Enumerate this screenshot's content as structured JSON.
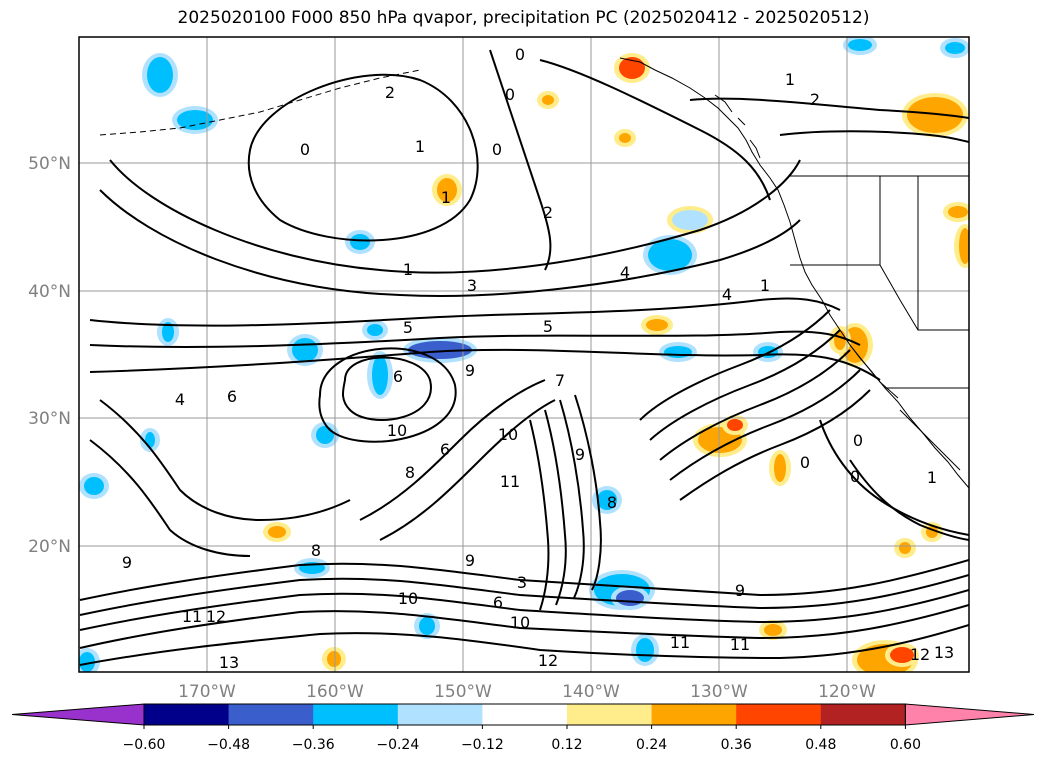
{
  "title": "2025020100 F000 850 hPa qvapor, precipitation PC (2025020412 - 2025020512)",
  "axes": {
    "longitude_labels": [
      "170°W",
      "160°W",
      "150°W",
      "140°W",
      "130°W",
      "120°W"
    ],
    "latitude_labels": [
      "50°N",
      "40°N",
      "30°N",
      "20°N"
    ],
    "grid": true
  },
  "colorbar": {
    "ticks": [
      "−0.60",
      "−0.48",
      "−0.36",
      "−0.24",
      "−0.12",
      "0.12",
      "0.24",
      "0.36",
      "0.48",
      "0.60"
    ],
    "colors": [
      "#9932cc",
      "#00008b",
      "#3a5fcd",
      "#00bfff",
      "#b0e2ff",
      "#ffffff",
      "#ffec8b",
      "#ffa500",
      "#ff4500",
      "#b22222",
      "#ff82ab"
    ],
    "extend": "both"
  },
  "contour_labels": [
    "2",
    "0",
    "1",
    "0",
    "2",
    "0",
    "1",
    "0",
    "1",
    "2",
    "1",
    "4",
    "4",
    "1",
    "3",
    "5",
    "5",
    "6",
    "9",
    "7",
    "10",
    "8",
    "6",
    "4",
    "6",
    "9",
    "10",
    "11",
    "8",
    "9",
    "6",
    "3",
    "10",
    "12",
    "11",
    "13",
    "12",
    "9",
    "10",
    "9",
    "11",
    "11",
    "0",
    "0",
    "1",
    "0",
    "8",
    "12",
    "13"
  ],
  "colors": {
    "pos_weak": "#ffec8b",
    "pos_mid": "#ffa500",
    "pos_strong": "#ff4500",
    "neg_weak": "#b0e2ff",
    "neg_mid": "#00bfff",
    "neg_strong": "#3a5fcd"
  }
}
